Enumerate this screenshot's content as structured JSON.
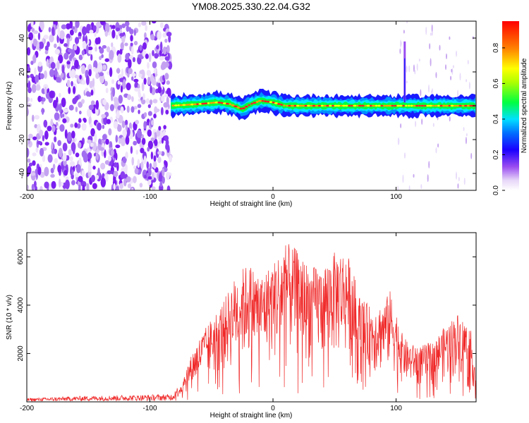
{
  "title": "YM08.2025.330.22.04.G32",
  "chart_data": [
    {
      "type": "heatmap",
      "name": "spectrogram",
      "xlabel": "Height of straight line (km)",
      "ylabel": "Frequency (Hz)",
      "xlim": [
        -200,
        165
      ],
      "ylim": [
        -50,
        50
      ],
      "xticks": [
        -200,
        -100,
        0,
        100
      ],
      "yticks": [
        -40,
        -20,
        0,
        20,
        40
      ],
      "noise_region_x": [
        -200,
        -83
      ],
      "signal_track": {
        "x_start": -83,
        "x_end": 165,
        "freq_hz": [
          [
            -83,
            0
          ],
          [
            -60,
            1
          ],
          [
            -45,
            2
          ],
          [
            -35,
            1
          ],
          [
            -25,
            -2
          ],
          [
            -18,
            1
          ],
          [
            -10,
            3
          ],
          [
            0,
            2
          ],
          [
            10,
            0
          ],
          [
            40,
            0
          ],
          [
            70,
            0
          ],
          [
            100,
            0
          ],
          [
            140,
            0
          ],
          [
            165,
            0
          ]
        ],
        "spike": {
          "x": 107,
          "freq_range": [
            2,
            38
          ]
        }
      },
      "colorbar": {
        "label": "Normalized spectral amplitude",
        "range": [
          0.0,
          0.95
        ],
        "ticks": [
          0.0,
          0.2,
          0.4,
          0.6,
          0.8
        ],
        "colors": [
          "#ffffff",
          "#c8a8f0",
          "#7a1cf0",
          "#0000ff",
          "#00c8ff",
          "#00ff00",
          "#ffff00",
          "#ff8000",
          "#ff0000"
        ]
      }
    },
    {
      "type": "line",
      "name": "snr",
      "xlabel": "Height of straight line (km)",
      "ylabel": "SNR (10 * v/v)",
      "xlim": [
        -200,
        165
      ],
      "ylim": [
        0,
        7000
      ],
      "xticks": [
        -200,
        -100,
        0,
        100
      ],
      "yticks": [
        2000,
        4000,
        6000
      ],
      "color": "#f02828",
      "envelope": {
        "x": [
          -200,
          -150,
          -100,
          -83,
          -75,
          -70,
          -65,
          -60,
          -50,
          -40,
          -30,
          -20,
          -10,
          0,
          10,
          20,
          30,
          40,
          50,
          55,
          60,
          65,
          70,
          80,
          90,
          95,
          100,
          105,
          110,
          120,
          130,
          140,
          150,
          160,
          165
        ],
        "y": [
          150,
          250,
          300,
          320,
          700,
          1400,
          2000,
          2500,
          3300,
          4000,
          5000,
          5500,
          5000,
          5500,
          6300,
          6000,
          5300,
          5400,
          5900,
          6000,
          5900,
          5200,
          4200,
          3700,
          3900,
          4400,
          3600,
          2700,
          2300,
          2200,
          2400,
          3000,
          3500,
          3000,
          1200
        ]
      }
    }
  ]
}
